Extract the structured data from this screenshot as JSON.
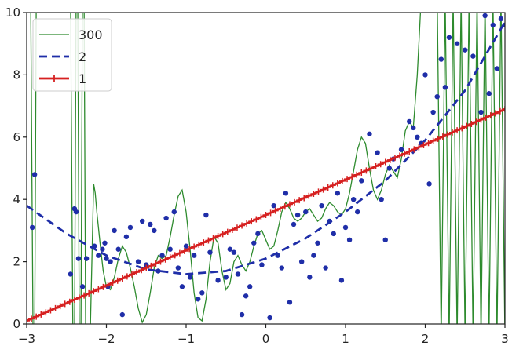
{
  "chart_data": {
    "type": "line",
    "title": "",
    "xlabel": "",
    "ylabel": "",
    "xlim": [
      -3,
      3
    ],
    "ylim": [
      0,
      10
    ],
    "xticks": [
      "−3",
      "−2",
      "−1",
      "0",
      "1",
      "2",
      "3"
    ],
    "yticks": [
      "0",
      "2",
      "4",
      "6",
      "8",
      "10"
    ],
    "grid": false,
    "legend_position": "top-left",
    "series": [
      {
        "name": "300",
        "style": "solid-thin",
        "color": "#2e8b2e",
        "x": [
          -3.0,
          -2.95,
          -2.92,
          -2.9,
          -2.88,
          -2.85,
          -2.6,
          -2.45,
          -2.42,
          -2.4,
          -2.38,
          -2.36,
          -2.34,
          -2.32,
          -2.3,
          -2.28,
          -2.26,
          -2.24,
          -2.2,
          -2.16,
          -2.14,
          -2.12,
          -2.08,
          -2.04,
          -2.0,
          -1.95,
          -1.9,
          -1.85,
          -1.8,
          -1.75,
          -1.7,
          -1.65,
          -1.6,
          -1.55,
          -1.5,
          -1.45,
          -1.4,
          -1.35,
          -1.3,
          -1.25,
          -1.2,
          -1.15,
          -1.1,
          -1.05,
          -1.0,
          -0.95,
          -0.9,
          -0.85,
          -0.8,
          -0.75,
          -0.7,
          -0.65,
          -0.6,
          -0.55,
          -0.5,
          -0.45,
          -0.4,
          -0.35,
          -0.3,
          -0.25,
          -0.2,
          -0.15,
          -0.1,
          -0.05,
          0.0,
          0.05,
          0.1,
          0.15,
          0.2,
          0.25,
          0.3,
          0.35,
          0.4,
          0.45,
          0.5,
          0.55,
          0.6,
          0.65,
          0.7,
          0.75,
          0.8,
          0.85,
          0.9,
          0.95,
          1.0,
          1.05,
          1.1,
          1.15,
          1.2,
          1.25,
          1.3,
          1.35,
          1.4,
          1.45,
          1.5,
          1.55,
          1.6,
          1.65,
          1.7,
          1.75,
          1.8,
          1.85,
          1.9,
          1.95,
          2.0,
          2.05,
          2.1,
          2.15,
          2.2,
          2.25,
          2.3,
          2.35,
          2.4,
          2.45,
          2.5,
          2.55,
          2.6,
          2.65,
          2.7,
          2.75,
          2.8,
          2.85,
          2.9,
          2.95,
          3.0
        ],
        "y": [
          10.5,
          10.5,
          -0.5,
          -0.5,
          10.5,
          10.5,
          10.5,
          10.5,
          -0.5,
          -0.5,
          10.5,
          10.5,
          -0.5,
          -0.5,
          10.5,
          10.5,
          -0.5,
          -0.5,
          0.0,
          4.5,
          4.2,
          3.6,
          2.6,
          1.7,
          1.2,
          1.1,
          1.5,
          2.1,
          2.5,
          2.3,
          1.8,
          1.2,
          0.5,
          0.05,
          0.3,
          1.0,
          1.8,
          2.2,
          2.1,
          2.2,
          2.8,
          3.5,
          4.1,
          4.3,
          3.6,
          2.4,
          1.0,
          0.2,
          0.1,
          0.8,
          2.0,
          2.8,
          2.6,
          1.7,
          1.1,
          1.3,
          2.0,
          2.2,
          1.9,
          1.7,
          2.0,
          2.5,
          2.9,
          3.0,
          2.7,
          2.4,
          2.5,
          3.0,
          3.6,
          3.9,
          3.7,
          3.4,
          3.3,
          3.4,
          3.6,
          3.7,
          3.5,
          3.3,
          3.4,
          3.7,
          3.9,
          3.8,
          3.6,
          3.5,
          3.7,
          4.2,
          4.9,
          5.6,
          6.0,
          5.8,
          5.0,
          4.3,
          4.0,
          4.3,
          4.8,
          5.1,
          4.9,
          4.7,
          5.3,
          6.2,
          6.5,
          6.3,
          8.0,
          10.5,
          10.5,
          10.5,
          10.5,
          10.5,
          -0.5,
          10.5,
          -0.5,
          10.5,
          -0.5,
          10.5,
          -0.5,
          10.5,
          -0.5,
          10.5,
          -0.5,
          10.5,
          -0.5,
          10.5,
          -0.5,
          10.5,
          -0.5
        ]
      },
      {
        "name": "2",
        "style": "dashed",
        "color": "#1f2ea8",
        "x": [
          -3.0,
          -2.5,
          -2.0,
          -1.5,
          -1.0,
          -0.5,
          0.0,
          0.5,
          1.0,
          1.5,
          2.0,
          2.5,
          3.0
        ],
        "y": [
          3.8,
          2.9,
          2.2,
          1.75,
          1.6,
          1.7,
          2.1,
          2.75,
          3.6,
          4.6,
          5.9,
          7.5,
          9.7
        ]
      },
      {
        "name": "1",
        "style": "solid-plus-markers",
        "color": "#d62020",
        "x": [
          -3.0,
          3.0
        ],
        "y": [
          0.1,
          6.9
        ]
      }
    ],
    "scatter": {
      "color": "#1f2ea8",
      "x": [
        -2.93,
        -2.9,
        -2.45,
        -2.4,
        -2.38,
        -2.35,
        -2.3,
        -2.25,
        -2.15,
        -2.1,
        -2.05,
        -2.02,
        -2.0,
        -1.98,
        -1.95,
        -1.9,
        -1.85,
        -1.8,
        -1.75,
        -1.7,
        -1.6,
        -1.55,
        -1.5,
        -1.45,
        -1.4,
        -1.35,
        -1.3,
        -1.25,
        -1.2,
        -1.15,
        -1.1,
        -1.05,
        -1.0,
        -0.95,
        -0.9,
        -0.85,
        -0.8,
        -0.75,
        -0.7,
        -0.6,
        -0.5,
        -0.45,
        -0.4,
        -0.35,
        -0.3,
        -0.25,
        -0.2,
        -0.15,
        -0.1,
        -0.05,
        0.05,
        0.1,
        0.15,
        0.2,
        0.25,
        0.3,
        0.35,
        0.4,
        0.45,
        0.5,
        0.55,
        0.6,
        0.65,
        0.7,
        0.75,
        0.8,
        0.85,
        0.9,
        0.95,
        1.0,
        1.05,
        1.1,
        1.15,
        1.2,
        1.3,
        1.4,
        1.45,
        1.5,
        1.55,
        1.6,
        1.7,
        1.8,
        1.85,
        1.9,
        1.95,
        2.0,
        2.05,
        2.1,
        2.15,
        2.2,
        2.25,
        2.3,
        2.4,
        2.5,
        2.6,
        2.7,
        2.75,
        2.8,
        2.85,
        2.9,
        2.95,
        3.0
      ],
      "y": [
        3.1,
        4.8,
        1.6,
        3.7,
        3.6,
        2.1,
        1.2,
        2.1,
        2.5,
        2.2,
        2.4,
        2.6,
        2.1,
        1.2,
        2.0,
        3.0,
        2.4,
        0.3,
        2.8,
        3.1,
        2.0,
        3.3,
        1.9,
        3.2,
        3.0,
        1.7,
        2.2,
        3.4,
        2.4,
        3.6,
        1.8,
        1.2,
        2.5,
        1.5,
        2.2,
        0.8,
        1.0,
        3.5,
        2.3,
        1.4,
        1.5,
        2.4,
        2.3,
        1.6,
        0.3,
        0.9,
        1.2,
        2.6,
        2.9,
        1.9,
        0.2,
        3.8,
        2.2,
        1.8,
        4.2,
        0.7,
        3.2,
        3.5,
        2.0,
        3.6,
        1.5,
        2.2,
        2.6,
        3.8,
        1.8,
        3.3,
        2.9,
        4.2,
        1.4,
        3.1,
        2.7,
        4.0,
        3.6,
        4.6,
        6.1,
        5.5,
        4.0,
        2.7,
        5.0,
        5.3,
        5.6,
        6.5,
        6.3,
        6.0,
        5.8,
        8.0,
        4.5,
        6.8,
        7.3,
        8.5,
        7.6,
        9.2,
        9.0,
        8.8,
        8.6,
        6.8,
        9.9,
        7.4,
        9.6,
        8.2,
        9.8,
        9.6
      ]
    }
  }
}
